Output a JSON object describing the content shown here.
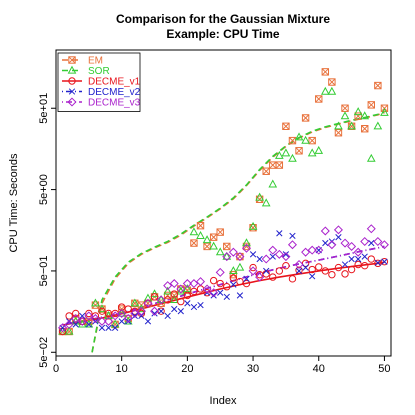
{
  "chart_data": {
    "type": "scatter",
    "title_lines": [
      "Comparison for the Gaussian Mixture",
      "Example: CPU Time"
    ],
    "xlabel": "Index",
    "ylabel": "CPU Time: Seconds",
    "xlim": [
      0,
      51
    ],
    "ylim": [
      0.045,
      260
    ],
    "y_scale": "log",
    "x_ticks": [
      0,
      10,
      20,
      30,
      40,
      50
    ],
    "x_tick_labels": [
      "0",
      "10",
      "20",
      "30",
      "40",
      "50"
    ],
    "y_ticks": [
      0.05,
      0.5,
      5,
      50
    ],
    "y_tick_labels": [
      "5e−02",
      "5e−01",
      "5e+00",
      "5e+01"
    ],
    "grid": false,
    "legend_position": "top-left",
    "series": [
      {
        "name": "EM",
        "color": "#e8703a",
        "marker": "square-x",
        "line_style": "dashed",
        "x": [
          1,
          2,
          3,
          4,
          5,
          6,
          7,
          8,
          9,
          10,
          11,
          12,
          13,
          14,
          15,
          16,
          17,
          18,
          19,
          20,
          21,
          22,
          23,
          24,
          25,
          26,
          27,
          28,
          29,
          30,
          31,
          32,
          33,
          34,
          35,
          36,
          37,
          38,
          39,
          40,
          41,
          42,
          43,
          44,
          45,
          46,
          47,
          48,
          49,
          50
        ],
        "y": [
          0.09,
          0.09,
          0.13,
          0.12,
          0.12,
          0.19,
          0.17,
          0.14,
          0.11,
          0.17,
          0.13,
          0.2,
          0.19,
          0.2,
          0.24,
          0.2,
          0.25,
          0.25,
          0.3,
          0.29,
          1.1,
          1.8,
          1.0,
          1.3,
          1.5,
          1.0,
          0.45,
          0.75,
          1.0,
          1.7,
          3.8,
          8.4,
          10.0,
          10.0,
          30,
          20,
          15,
          38,
          20,
          65,
          140,
          105,
          25,
          50,
          30,
          40,
          28,
          55,
          95,
          50
        ],
        "trend_x": [
          5.5,
          7,
          9,
          11,
          13,
          15,
          17,
          19,
          21,
          23,
          25,
          27,
          29,
          31,
          33,
          35,
          37,
          39,
          41,
          43,
          45,
          47,
          49,
          50
        ],
        "trend_y": [
          0.05,
          0.2,
          0.4,
          0.62,
          0.8,
          0.96,
          1.12,
          1.38,
          1.78,
          2.25,
          2.9,
          3.85,
          5.6,
          8.6,
          12.5,
          17.0,
          21.5,
          25.5,
          29.0,
          32.0,
          35.0,
          38.0,
          41.5,
          44.0
        ]
      },
      {
        "name": "SOR",
        "color": "#33cc33",
        "marker": "triangle",
        "line_style": "dashed",
        "x": [
          1,
          2,
          3,
          4,
          5,
          6,
          7,
          8,
          9,
          10,
          11,
          12,
          13,
          14,
          15,
          16,
          17,
          18,
          19,
          20,
          21,
          22,
          23,
          24,
          25,
          26,
          27,
          28,
          29,
          30,
          31,
          32,
          33,
          34,
          35,
          36,
          37,
          38,
          39,
          40,
          41,
          42,
          43,
          44,
          45,
          46,
          47,
          48,
          49,
          50
        ],
        "y": [
          0.09,
          0.09,
          0.12,
          0.11,
          0.11,
          0.2,
          0.17,
          0.14,
          0.11,
          0.15,
          0.12,
          0.2,
          0.17,
          0.23,
          0.26,
          0.22,
          0.28,
          0.22,
          0.28,
          0.3,
          1.5,
          1.35,
          1.2,
          1.0,
          0.85,
          0.75,
          0.5,
          0.55,
          1.1,
          1.75,
          4.0,
          3.4,
          5.8,
          13.0,
          14.0,
          12.0,
          22.0,
          20.0,
          14.0,
          15.0,
          80,
          80,
          30,
          40,
          30,
          45,
          40,
          12.0,
          30,
          44
        ],
        "trend_x": [
          5.5,
          7,
          9,
          11,
          13,
          15,
          17,
          19,
          21,
          23,
          25,
          27,
          29,
          31,
          33,
          35,
          37,
          39,
          41,
          43,
          45,
          47,
          49,
          50
        ],
        "trend_y": [
          0.05,
          0.22,
          0.42,
          0.64,
          0.82,
          0.98,
          1.15,
          1.42,
          1.82,
          2.3,
          2.95,
          3.95,
          5.7,
          8.8,
          12.8,
          17.2,
          21.8,
          26.0,
          29.5,
          32.5,
          35.5,
          38.5,
          42.0,
          45.0
        ]
      },
      {
        "name": "DECME_v1",
        "color": "#e8141c",
        "marker": "circle",
        "line_style": "solid",
        "x": [
          1,
          2,
          3,
          4,
          5,
          6,
          7,
          8,
          9,
          10,
          11,
          12,
          13,
          14,
          15,
          16,
          17,
          18,
          19,
          20,
          21,
          22,
          23,
          24,
          25,
          26,
          27,
          28,
          29,
          30,
          31,
          32,
          33,
          34,
          35,
          36,
          37,
          38,
          39,
          40,
          41,
          42,
          43,
          44,
          45,
          46,
          47,
          48,
          49,
          50
        ],
        "y": [
          0.09,
          0.14,
          0.15,
          0.12,
          0.15,
          0.14,
          0.16,
          0.15,
          0.15,
          0.18,
          0.17,
          0.16,
          0.15,
          0.2,
          0.24,
          0.16,
          0.22,
          0.26,
          0.21,
          0.25,
          0.28,
          0.3,
          0.27,
          0.38,
          0.35,
          0.32,
          0.41,
          0.37,
          0.35,
          0.55,
          0.45,
          0.46,
          0.42,
          0.5,
          0.58,
          0.4,
          0.51,
          0.62,
          0.52,
          0.56,
          0.5,
          0.45,
          0.55,
          0.46,
          0.52,
          0.6,
          0.58,
          0.7,
          0.62,
          0.65
        ],
        "trend_x": [
          1,
          4,
          7,
          10,
          13,
          16,
          19,
          22,
          25,
          28,
          31,
          34,
          37,
          40,
          43,
          46,
          49,
          50
        ],
        "trend_y": [
          0.108,
          0.119,
          0.132,
          0.149,
          0.171,
          0.198,
          0.228,
          0.262,
          0.3,
          0.34,
          0.38,
          0.42,
          0.46,
          0.5,
          0.54,
          0.58,
          0.62,
          0.64
        ]
      },
      {
        "name": "DECME_v2",
        "color": "#2222cc",
        "marker": "cross",
        "line_style": "dotdash",
        "x": [
          1,
          2,
          3,
          4,
          5,
          6,
          7,
          8,
          9,
          10,
          11,
          12,
          13,
          14,
          15,
          16,
          17,
          18,
          19,
          20,
          21,
          22,
          23,
          24,
          25,
          26,
          27,
          28,
          29,
          30,
          31,
          32,
          33,
          34,
          35,
          36,
          37,
          38,
          39,
          40,
          41,
          42,
          43,
          44,
          45,
          46,
          47,
          48,
          49,
          50
        ],
        "y": [
          0.1,
          0.12,
          0.11,
          0.14,
          0.11,
          0.12,
          0.1,
          0.1,
          0.1,
          0.12,
          0.12,
          0.14,
          0.14,
          0.12,
          0.15,
          0.16,
          0.14,
          0.17,
          0.16,
          0.2,
          0.18,
          0.19,
          0.27,
          0.25,
          0.27,
          0.24,
          0.34,
          0.25,
          0.4,
          0.8,
          0.7,
          0.5,
          0.75,
          1.45,
          0.8,
          1.35,
          0.5,
          0.55,
          0.43,
          0.9,
          1.1,
          1.15,
          1.3,
          0.6,
          0.7,
          0.7,
          0.75,
          1.1,
          0.63,
          0.65
        ],
        "trend_x": [
          1,
          4,
          7,
          10,
          13,
          16,
          19,
          22,
          25,
          28,
          31,
          34,
          37,
          40,
          43,
          46,
          49,
          50
        ],
        "trend_y": [
          0.11,
          0.12,
          0.135,
          0.152,
          0.178,
          0.21,
          0.245,
          0.29,
          0.34,
          0.4,
          0.47,
          0.54,
          0.61,
          0.68,
          0.76,
          0.86,
          0.96,
          1.0
        ]
      },
      {
        "name": "DECME_v3",
        "color": "#aa22cc",
        "marker": "diamond",
        "line_style": "dotdash",
        "x": [
          1,
          2,
          3,
          4,
          5,
          6,
          7,
          8,
          9,
          10,
          11,
          12,
          13,
          14,
          15,
          16,
          17,
          18,
          19,
          20,
          21,
          22,
          23,
          24,
          25,
          26,
          27,
          28,
          29,
          30,
          31,
          32,
          33,
          34,
          35,
          36,
          37,
          38,
          39,
          40,
          41,
          42,
          43,
          44,
          45,
          46,
          47,
          48,
          49,
          50
        ],
        "y": [
          0.1,
          0.11,
          0.13,
          0.12,
          0.14,
          0.13,
          0.12,
          0.12,
          0.14,
          0.15,
          0.13,
          0.15,
          0.16,
          0.2,
          0.16,
          0.22,
          0.33,
          0.35,
          0.3,
          0.35,
          0.35,
          0.37,
          0.3,
          0.27,
          0.48,
          0.75,
          0.85,
          0.75,
          0.95,
          0.5,
          0.42,
          0.7,
          0.9,
          0.8,
          0.75,
          1.05,
          0.6,
          0.85,
          0.9,
          0.9,
          1.55,
          1.05,
          1.6,
          1.1,
          1.0,
          0.85,
          1.15,
          1.65,
          1.15,
          1.05
        ],
        "trend_x": [
          1,
          4,
          7,
          10,
          13,
          16,
          19,
          22,
          25,
          28,
          31,
          34,
          37,
          40,
          43,
          46,
          49,
          50
        ],
        "trend_y": [
          0.11,
          0.12,
          0.135,
          0.152,
          0.178,
          0.21,
          0.245,
          0.29,
          0.34,
          0.4,
          0.47,
          0.54,
          0.61,
          0.68,
          0.76,
          0.86,
          0.96,
          1.0
        ]
      }
    ]
  }
}
